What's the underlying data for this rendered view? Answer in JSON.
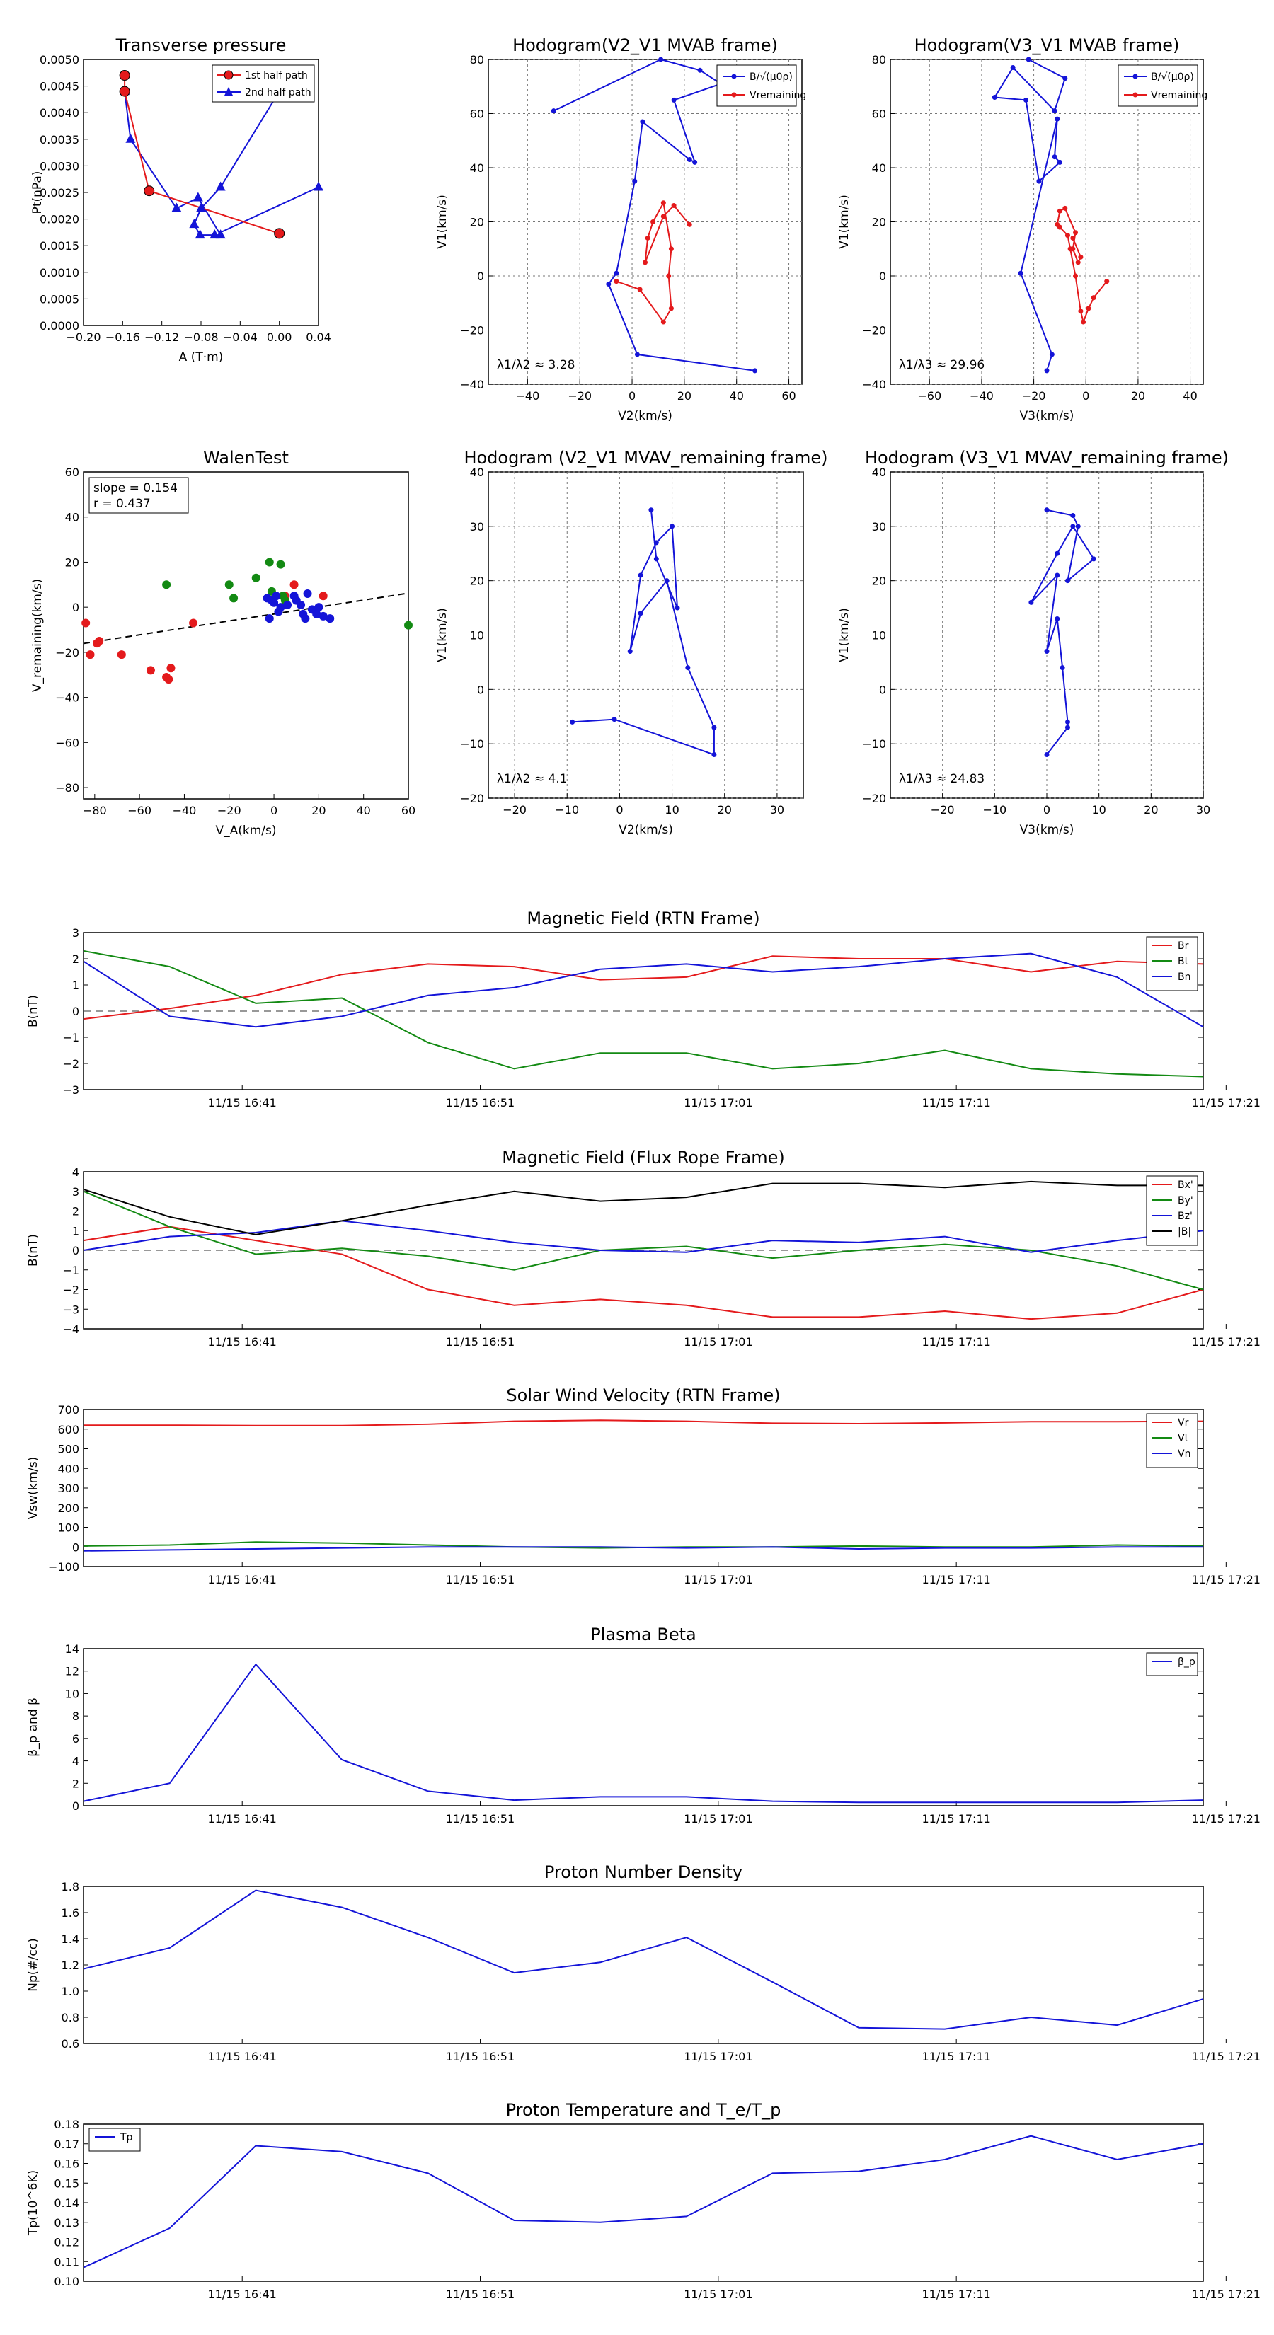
{
  "colors": {
    "red": "#e41a1c",
    "green": "#138a13",
    "blue": "#1414d8",
    "black": "#000000"
  },
  "time_ticks": [
    "11/15 16:41",
    "11/15 16:51",
    "11/15 17:01",
    "11/15 17:11",
    "11/15 17:21"
  ],
  "chart_data": [
    {
      "id": "transverse",
      "type": "scatter",
      "title": "Transverse pressure",
      "xlabel": "A (T·m)",
      "ylabel": "Pt(nPa)",
      "xlim": [
        -0.2,
        0.04
      ],
      "ylim": [
        0,
        0.005
      ],
      "xticks": [
        "-0.20",
        "-0.16",
        "-0.12",
        "-0.08",
        "-0.04",
        "0.00",
        "0.04"
      ],
      "yticks": [
        "0.0000",
        "0.0005",
        "0.0010",
        "0.0015",
        "0.0020",
        "0.0025",
        "0.0030",
        "0.0035",
        "0.0040",
        "0.0045",
        "0.0050"
      ],
      "legend": [
        "1st half path",
        "2nd half path"
      ],
      "series": [
        {
          "name": "1st half path",
          "color": "red",
          "marker": "circle",
          "x": [
            -0.158,
            -0.158,
            -0.133,
            0.0
          ],
          "y": [
            0.0047,
            0.0044,
            0.00253,
            0.00173
          ]
        },
        {
          "name": "2nd half path",
          "color": "blue",
          "marker": "triangle",
          "x": [
            0.0,
            -0.06,
            -0.08,
            -0.087,
            -0.081,
            -0.066,
            -0.06,
            -0.083,
            -0.105,
            -0.152,
            -0.158
          ],
          "y": [
            0.0044,
            0.0026,
            0.0022,
            0.0019,
            0.0017,
            0.0017,
            0.0017,
            0.0024,
            0.0022,
            0.0035,
            0.0044
          ]
        }
      ],
      "extra_2nd": {
        "x": [
          -0.06,
          0.04
        ],
        "y": [
          0.00175,
          0.0026
        ]
      }
    },
    {
      "id": "hodo1",
      "type": "line",
      "title": "Hodogram(V2_V1 MVAB frame)",
      "xlabel": "V2(km/s)",
      "ylabel": "V1(km/s)",
      "xlim": [
        -55,
        65
      ],
      "ylim": [
        -40,
        80
      ],
      "xticks": [
        "-40",
        "-20",
        "0",
        "20",
        "40",
        "60"
      ],
      "yticks": [
        "-40",
        "-20",
        "0",
        "20",
        "40",
        "60",
        "80"
      ],
      "note": "λ1/λ2 ≈ 3.28",
      "legend": [
        "B/√(μ0ρ)",
        "Vremaining"
      ],
      "series": [
        {
          "name": "B/√(μ0ρ)",
          "color": "blue",
          "x": [
            -30,
            11,
            26,
            34,
            16,
            24,
            22,
            4,
            1,
            -6,
            -9,
            2,
            47
          ],
          "y": [
            61,
            80,
            76,
            71,
            65,
            42,
            43,
            57,
            35,
            1,
            -3,
            -29,
            -35
          ]
        },
        {
          "name": "Vremaining",
          "color": "red",
          "x": [
            -6,
            3,
            12,
            15,
            14,
            15,
            12,
            8,
            6,
            5,
            12,
            16,
            22
          ],
          "y": [
            -2,
            -5,
            -17,
            -12,
            0,
            10,
            27,
            20,
            14,
            5,
            22,
            26,
            19
          ]
        }
      ]
    },
    {
      "id": "hodo2",
      "type": "line",
      "title": "Hodogram(V3_V1 MVAB frame)",
      "xlabel": "V3(km/s)",
      "ylabel": "V1(km/s)",
      "xlim": [
        -75,
        45
      ],
      "ylim": [
        -40,
        80
      ],
      "xticks": [
        "-60",
        "-40",
        "-20",
        "0",
        "20",
        "40"
      ],
      "yticks": [
        "-40",
        "-20",
        "0",
        "20",
        "40",
        "60",
        "80"
      ],
      "note": "λ1/λ3 ≈ 29.96",
      "legend": [
        "B/√(μ0ρ)",
        "Vremaining"
      ],
      "series": [
        {
          "name": "B/√(μ0ρ)",
          "color": "blue",
          "x": [
            -22,
            -8,
            -12,
            -28,
            -35,
            -23,
            -18,
            -10,
            -12,
            -11,
            -25,
            -13,
            -15
          ],
          "y": [
            80,
            73,
            61,
            77,
            66,
            65,
            35,
            42,
            44,
            58,
            1,
            -29,
            -35
          ]
        },
        {
          "name": "Vremaining",
          "color": "red",
          "x": [
            8,
            3,
            1,
            -1,
            -2,
            -4,
            -6,
            -7,
            -10,
            -11,
            -10,
            -8,
            -4,
            -5,
            -3,
            -2,
            -5
          ],
          "y": [
            -2,
            -8,
            -12,
            -17,
            -13,
            0,
            10,
            15,
            18,
            19,
            24,
            25,
            16,
            10,
            5,
            7,
            14
          ]
        }
      ]
    },
    {
      "id": "walen",
      "type": "scatter",
      "title": "WalenTest",
      "xlabel": "V_A(km/s)",
      "ylabel": "V_remaining(km/s)",
      "xlim": [
        -85,
        60
      ],
      "ylim": [
        -85,
        60
      ],
      "xticks": [
        "-80",
        "-60",
        "-40",
        "-20",
        "0",
        "20",
        "40",
        "60"
      ],
      "yticks": [
        "-80",
        "-60",
        "-40",
        "-20",
        "0",
        "20",
        "40",
        "60"
      ],
      "note": [
        "slope = 0.154",
        "r = 0.437"
      ],
      "fit": {
        "slope": 0.154,
        "intercept": -3
      },
      "series": [
        {
          "color": "red",
          "x": [
            -84,
            -82,
            -79,
            -78,
            -68,
            -55,
            -48,
            -47,
            -46,
            -36,
            5,
            9,
            22
          ],
          "y": [
            -7,
            -21,
            -16,
            -15,
            -21,
            -28,
            -31,
            -32,
            -27,
            -7,
            5,
            10,
            5
          ]
        },
        {
          "color": "green",
          "x": [
            -48,
            -20,
            -18,
            -8,
            -2,
            -1,
            3,
            4,
            5,
            60
          ],
          "y": [
            10,
            10,
            4,
            13,
            20,
            7,
            19,
            5,
            3,
            -8
          ]
        },
        {
          "color": "blue",
          "x": [
            -3,
            -2,
            -1,
            0,
            1,
            2,
            3,
            6,
            9,
            10,
            12,
            13,
            14,
            15,
            17,
            19,
            20,
            22,
            25
          ],
          "y": [
            4,
            -5,
            3,
            2,
            5,
            -2,
            0,
            1,
            5,
            3,
            1,
            -3,
            -5,
            6,
            -1,
            -3,
            0,
            -4,
            -5
          ]
        }
      ]
    },
    {
      "id": "hodo3",
      "type": "line",
      "title": "Hodogram (V2_V1 MVAV_remaining frame)",
      "xlabel": "V2(km/s)",
      "ylabel": "V1(km/s)",
      "xlim": [
        -25,
        35
      ],
      "ylim": [
        -20,
        40
      ],
      "xticks": [
        "-20",
        "-10",
        "0",
        "10",
        "20",
        "30"
      ],
      "yticks": [
        "-20",
        "-10",
        "0",
        "10",
        "20",
        "30",
        "40"
      ],
      "note": "λ1/λ2 ≈ 4.1",
      "series": [
        {
          "color": "blue",
          "x": [
            -9,
            -1,
            18,
            18,
            13,
            9,
            4,
            2,
            4,
            7,
            10,
            11,
            7,
            6
          ],
          "y": [
            -6,
            -5.5,
            -12,
            -7,
            4,
            20,
            14,
            7,
            21,
            27,
            30,
            15,
            24,
            33
          ]
        }
      ]
    },
    {
      "id": "hodo4",
      "type": "line",
      "title": "Hodogram (V3_V1 MVAV_remaining frame)",
      "xlabel": "V3(km/s)",
      "ylabel": "V1(km/s)",
      "xlim": [
        -30,
        30
      ],
      "ylim": [
        -20,
        40
      ],
      "xticks": [
        "-20",
        "-10",
        "0",
        "10",
        "20",
        "30"
      ],
      "yticks": [
        "-20",
        "-10",
        "0",
        "10",
        "20",
        "30",
        "40"
      ],
      "note": "λ1/λ3 ≈ 24.83",
      "series": [
        {
          "color": "blue",
          "x": [
            0,
            4,
            4,
            3,
            2,
            0,
            2,
            -3,
            2,
            5,
            9,
            4,
            6,
            5,
            0
          ],
          "y": [
            -12,
            -7,
            -6,
            4,
            13,
            7,
            21,
            16,
            25,
            30,
            24,
            20,
            30,
            32,
            33
          ]
        }
      ]
    },
    {
      "id": "bfield_rtn",
      "type": "line",
      "title": "Magnetic Field (RTN Frame)",
      "ylabel": "B(nT)",
      "ylim": [
        -3,
        3
      ],
      "yticks": [
        "-3",
        "-2",
        "-1",
        "0",
        "1",
        "2",
        "3"
      ],
      "dashed_zero": true,
      "legend_pos": "top-right",
      "x": [
        0,
        1,
        2,
        3,
        4,
        5,
        6,
        7,
        8,
        9,
        10,
        11,
        12,
        13
      ],
      "series": [
        {
          "name": "Br",
          "color": "red",
          "values": [
            -0.3,
            0.1,
            0.6,
            1.4,
            1.8,
            1.7,
            1.2,
            1.3,
            2.1,
            2.0,
            2.0,
            1.5,
            1.9,
            1.8
          ]
        },
        {
          "name": "Bt",
          "color": "green",
          "values": [
            2.3,
            1.7,
            0.3,
            0.5,
            -1.2,
            -2.2,
            -1.6,
            -1.6,
            -2.2,
            -2.0,
            -1.5,
            -2.2,
            -2.4,
            -2.5
          ]
        },
        {
          "name": "Bn",
          "color": "blue",
          "values": [
            1.9,
            -0.2,
            -0.6,
            -0.2,
            0.6,
            0.9,
            1.6,
            1.8,
            1.5,
            1.7,
            2.0,
            2.2,
            1.3,
            -0.6
          ]
        }
      ]
    },
    {
      "id": "bfield_fr",
      "type": "line",
      "title": "Magnetic Field (Flux Rope Frame)",
      "ylabel": "B(nT)",
      "ylim": [
        -4,
        4
      ],
      "yticks": [
        "-4",
        "-3",
        "-2",
        "-1",
        "0",
        "1",
        "2",
        "3",
        "4"
      ],
      "dashed_zero": true,
      "legend_pos": "top-right",
      "x": [
        0,
        1,
        2,
        3,
        4,
        5,
        6,
        7,
        8,
        9,
        10,
        11,
        12,
        13
      ],
      "series": [
        {
          "name": "Bx'",
          "color": "red",
          "values": [
            0.5,
            1.2,
            0.5,
            -0.2,
            -2.0,
            -2.8,
            -2.5,
            -2.8,
            -3.4,
            -3.4,
            -3.1,
            -3.5,
            -3.2,
            -2.0
          ]
        },
        {
          "name": "By'",
          "color": "green",
          "values": [
            3.0,
            1.2,
            -0.2,
            0.1,
            -0.3,
            -1.0,
            0.0,
            0.2,
            -0.4,
            0.0,
            0.3,
            0.0,
            -0.8,
            -2.0
          ]
        },
        {
          "name": "Bz'",
          "color": "blue",
          "values": [
            0.0,
            0.7,
            0.9,
            1.5,
            1.0,
            0.4,
            0.0,
            -0.1,
            0.5,
            0.4,
            0.7,
            -0.1,
            0.5,
            1.0
          ]
        },
        {
          "name": "|B|",
          "color": "black",
          "values": [
            3.1,
            1.7,
            0.8,
            1.5,
            2.3,
            3.0,
            2.5,
            2.7,
            3.4,
            3.4,
            3.2,
            3.5,
            3.3,
            3.3
          ]
        }
      ]
    },
    {
      "id": "vsw",
      "type": "line",
      "title": "Solar Wind Velocity (RTN Frame)",
      "ylabel": "Vsw(km/s)",
      "ylim": [
        -100,
        700
      ],
      "yticks": [
        "-100",
        "0",
        "100",
        "200",
        "300",
        "400",
        "500",
        "600",
        "700"
      ],
      "legend_pos": "top-right",
      "x": [
        0,
        1,
        2,
        3,
        4,
        5,
        6,
        7,
        8,
        9,
        10,
        11,
        12,
        13
      ],
      "series": [
        {
          "name": "Vr",
          "color": "red",
          "values": [
            620,
            620,
            618,
            618,
            625,
            640,
            645,
            640,
            630,
            628,
            632,
            638,
            638,
            640
          ]
        },
        {
          "name": "Vt",
          "color": "green",
          "values": [
            5,
            10,
            25,
            20,
            10,
            0,
            -5,
            0,
            0,
            5,
            0,
            0,
            10,
            5
          ]
        },
        {
          "name": "Vn",
          "color": "blue",
          "values": [
            -20,
            -15,
            -10,
            -5,
            0,
            0,
            0,
            -5,
            0,
            -10,
            -5,
            -5,
            0,
            0
          ]
        }
      ]
    },
    {
      "id": "beta",
      "type": "line",
      "title": "Plasma Beta",
      "ylabel": "β_p and β",
      "ylim": [
        0,
        14
      ],
      "yticks": [
        "0",
        "2",
        "4",
        "6",
        "8",
        "10",
        "12",
        "14"
      ],
      "legend_pos": "top-right",
      "x": [
        0,
        1,
        2,
        3,
        4,
        5,
        6,
        7,
        8,
        9,
        10,
        11,
        12,
        13
      ],
      "series": [
        {
          "name": "β_p",
          "color": "blue",
          "values": [
            0.4,
            2.0,
            12.6,
            4.1,
            1.3,
            0.5,
            0.8,
            0.8,
            0.4,
            0.3,
            0.3,
            0.3,
            0.3,
            0.5
          ]
        }
      ]
    },
    {
      "id": "np",
      "type": "line",
      "title": "Proton Number Density",
      "ylabel": "Np(#/cc)",
      "ylim": [
        0.6,
        1.8
      ],
      "yticks": [
        "0.6",
        "0.8",
        "1.0",
        "1.2",
        "1.4",
        "1.6",
        "1.8"
      ],
      "x": [
        0,
        1,
        2,
        3,
        4,
        5,
        6,
        7,
        8,
        9,
        10,
        11,
        12,
        13
      ],
      "series": [
        {
          "color": "blue",
          "values": [
            1.17,
            1.33,
            1.77,
            1.64,
            1.41,
            1.14,
            1.22,
            1.41,
            1.07,
            0.72,
            0.71,
            0.8,
            0.74,
            0.94
          ]
        }
      ]
    },
    {
      "id": "tp",
      "type": "line",
      "title": "Proton Temperature and T_e/T_p",
      "ylabel": "Tp(10^6K)",
      "ylim": [
        0.1,
        0.18
      ],
      "yticks": [
        "0.10",
        "0.11",
        "0.12",
        "0.13",
        "0.14",
        "0.15",
        "0.16",
        "0.17",
        "0.18"
      ],
      "legend_pos": "top-left",
      "x": [
        0,
        1,
        2,
        3,
        4,
        5,
        6,
        7,
        8,
        9,
        10,
        11,
        12,
        13
      ],
      "series": [
        {
          "name": "Tp",
          "color": "blue",
          "values": [
            0.107,
            0.127,
            0.169,
            0.166,
            0.155,
            0.131,
            0.13,
            0.133,
            0.155,
            0.156,
            0.162,
            0.174,
            0.162,
            0.17
          ]
        }
      ]
    }
  ]
}
